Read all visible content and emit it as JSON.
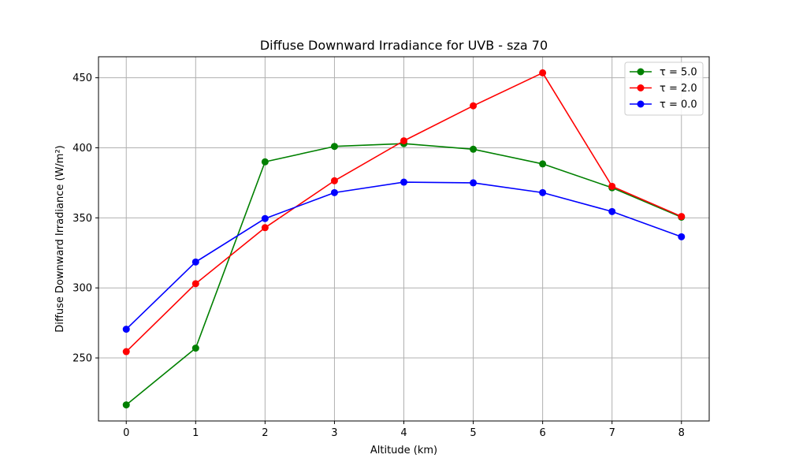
{
  "chart_data": {
    "type": "line",
    "title": "Diffuse Downward Irradiance for UVB - sza 70",
    "xlabel": "Altitude (km)",
    "ylabel": "Diffuse Downward Irradiance (W/m²)",
    "x": [
      0,
      1,
      2,
      3,
      4,
      5,
      6,
      7,
      8
    ],
    "x_ticks": [
      "0",
      "1",
      "2",
      "3",
      "4",
      "5",
      "6",
      "7",
      "8"
    ],
    "y_ticks": [
      "250",
      "300",
      "350",
      "400",
      "450"
    ],
    "xlim": [
      -0.4,
      8.4
    ],
    "ylim": [
      205,
      465
    ],
    "grid": true,
    "legend_position": "top-right",
    "series": [
      {
        "name": "τ = 5.0",
        "color": "#008000",
        "values": [
          216.5,
          257.0,
          390.0,
          401.0,
          403.0,
          399.0,
          388.5,
          371.5,
          350.5
        ]
      },
      {
        "name": "τ = 2.0",
        "color": "#ff0000",
        "values": [
          254.5,
          303.0,
          343.0,
          376.5,
          405.0,
          430.0,
          453.5,
          372.5,
          351.0
        ]
      },
      {
        "name": "τ = 0.0",
        "color": "#0000ff",
        "values": [
          270.5,
          318.5,
          349.5,
          368.0,
          375.5,
          375.0,
          368.0,
          354.5,
          336.5
        ]
      }
    ]
  }
}
